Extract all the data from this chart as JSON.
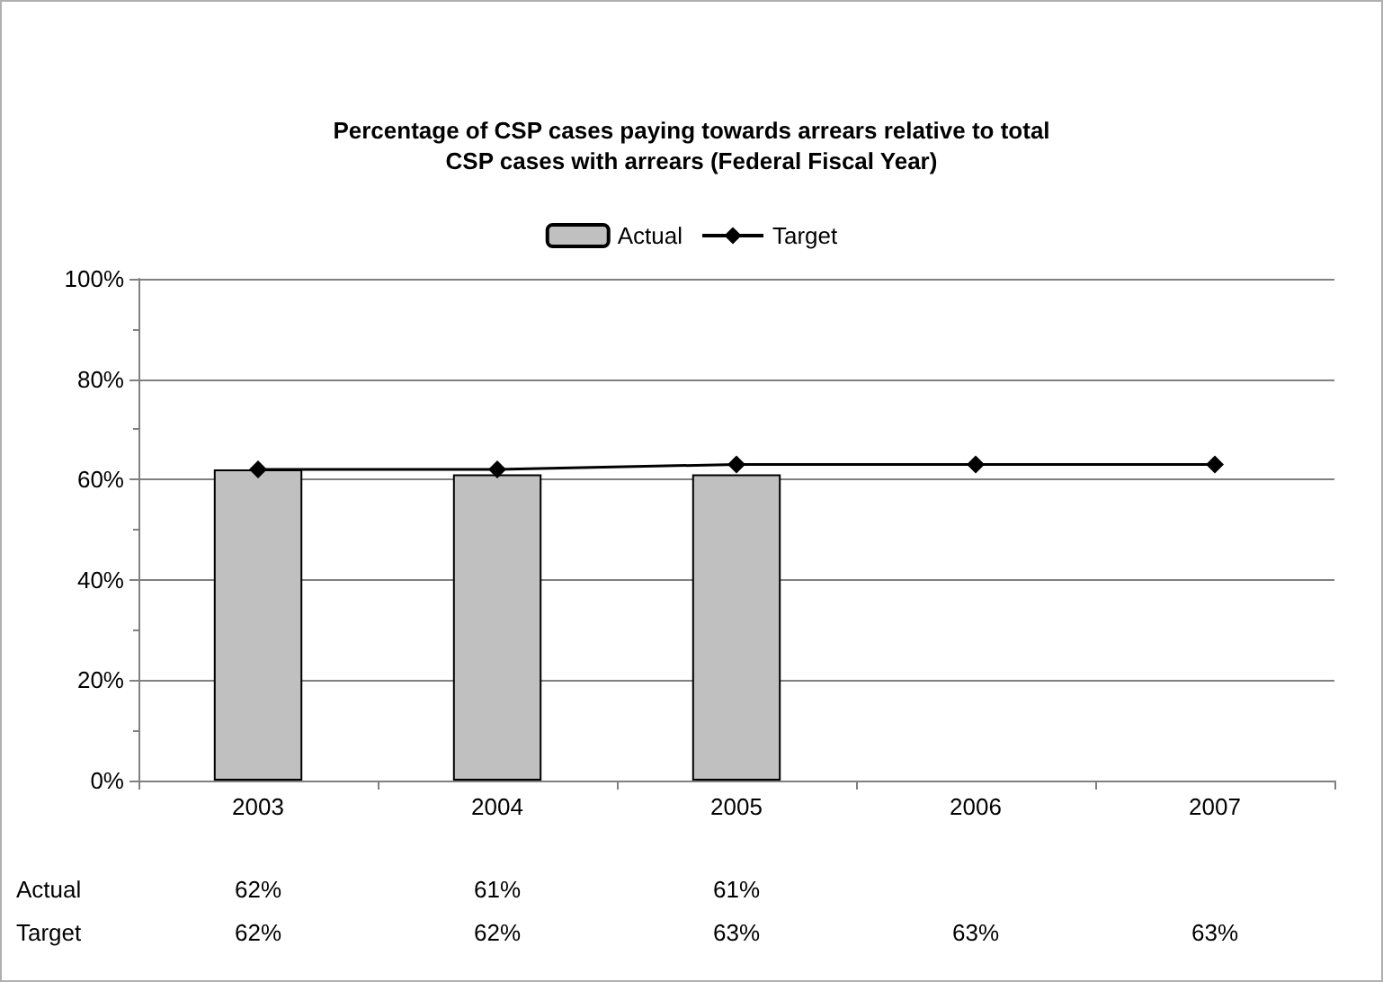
{
  "chart_data": {
    "type": "bar",
    "title": "Percentage of CSP cases paying towards arrears relative to total\nCSP cases with arrears (Federal Fiscal Year)",
    "categories": [
      "2003",
      "2004",
      "2005",
      "2006",
      "2007"
    ],
    "series": [
      {
        "name": "Actual",
        "color": "#c0c0c0",
        "values": [
          62,
          61,
          61,
          null,
          null
        ],
        "value_labels": [
          "62%",
          "61%",
          "61%",
          null,
          null
        ]
      },
      {
        "name": "Target",
        "type": "line",
        "color": "#000000",
        "marker": "diamond",
        "values": [
          62,
          62,
          63,
          63,
          63
        ],
        "value_labels": [
          "62%",
          "62%",
          "63%",
          "63%",
          "63%"
        ]
      }
    ],
    "ylim": [
      0,
      100
    ],
    "yticks": [
      {
        "value": 0,
        "label": "0%"
      },
      {
        "value": 20,
        "label": "20%"
      },
      {
        "value": 40,
        "label": "40%"
      },
      {
        "value": 60,
        "label": "60%"
      },
      {
        "value": 80,
        "label": "80%"
      },
      {
        "value": 100,
        "label": "100%"
      }
    ],
    "grid": "y",
    "legend": "top"
  }
}
